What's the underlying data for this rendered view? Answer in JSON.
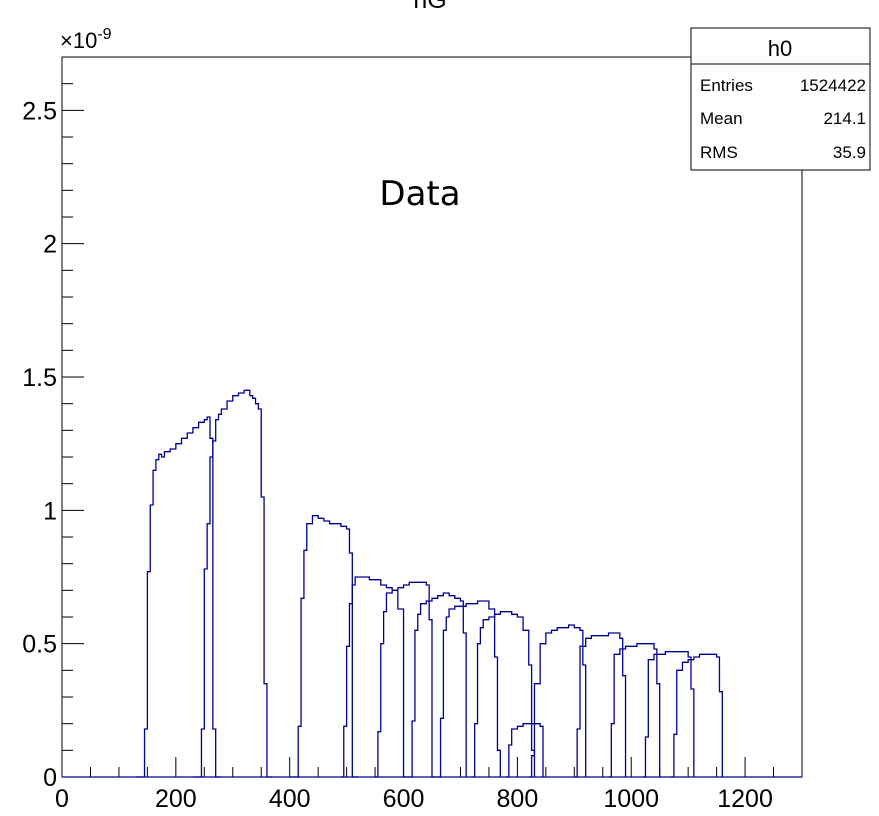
{
  "chart_data": {
    "type": "histogram",
    "title": "hG",
    "annotation": "Data",
    "y_multiplier": "×10",
    "y_multiplier_exp": "-9",
    "xlim": [
      0,
      1300
    ],
    "ylim": [
      0,
      2.7
    ],
    "x_ticks": [
      "0",
      "200",
      "400",
      "600",
      "800",
      "1000",
      "1200"
    ],
    "x_tick_values": [
      0,
      200,
      400,
      600,
      800,
      1000,
      1200
    ],
    "y_ticks": [
      "0",
      "0.5",
      "1",
      "1.5",
      "2",
      "2.5"
    ],
    "y_tick_values": [
      0,
      0.5,
      1,
      1.5,
      2,
      2.5
    ],
    "line_color": "#000099",
    "stats": {
      "name": "h0",
      "rows": [
        {
          "label": "Entries",
          "value": "1524422"
        },
        {
          "label": "Mean",
          "value": "214.1"
        },
        {
          "label": "RMS",
          "value": "35.9"
        }
      ]
    },
    "series": [
      {
        "x": [
          130,
          140,
          145,
          150,
          155,
          160,
          165,
          170,
          175,
          180,
          190,
          200,
          210,
          220,
          230,
          240,
          250,
          255,
          260,
          265,
          270,
          280
        ],
        "y": [
          0,
          0,
          0.18,
          0.77,
          1.02,
          1.15,
          1.19,
          1.21,
          1.2,
          1.22,
          1.23,
          1.25,
          1.27,
          1.29,
          1.31,
          1.33,
          1.34,
          1.35,
          1.27,
          0.18,
          0,
          0
        ]
      },
      {
        "x": [
          230,
          240,
          245,
          250,
          255,
          260,
          265,
          270,
          275,
          280,
          290,
          300,
          310,
          320,
          330,
          335,
          340,
          345,
          350,
          355,
          360,
          370
        ],
        "y": [
          0,
          0,
          0.18,
          0.78,
          0.95,
          1.2,
          1.26,
          1.34,
          1.36,
          1.38,
          1.41,
          1.43,
          1.44,
          1.45,
          1.43,
          1.42,
          1.4,
          1.38,
          1.05,
          0.35,
          0,
          0
        ]
      },
      {
        "x": [
          400,
          410,
          415,
          420,
          425,
          430,
          440,
          450,
          460,
          470,
          480,
          490,
          500,
          505,
          510,
          520
        ],
        "y": [
          0,
          0,
          0.19,
          0.67,
          0.85,
          0.95,
          0.98,
          0.97,
          0.96,
          0.95,
          0.95,
          0.94,
          0.93,
          0.84,
          0,
          0
        ]
      },
      {
        "x": [
          490,
          495,
          500,
          505,
          510,
          515,
          520,
          530,
          540,
          550,
          560,
          570,
          580,
          590,
          600,
          610
        ],
        "y": [
          0,
          0.19,
          0.49,
          0.65,
          0.72,
          0.75,
          0.75,
          0.75,
          0.74,
          0.74,
          0.72,
          0.71,
          0.7,
          0.63,
          0,
          0
        ]
      },
      {
        "x": [
          550,
          555,
          560,
          565,
          570,
          580,
          590,
          600,
          610,
          620,
          630,
          640,
          645,
          650,
          660
        ],
        "y": [
          0,
          0.17,
          0.5,
          0.62,
          0.69,
          0.7,
          0.71,
          0.72,
          0.73,
          0.73,
          0.73,
          0.72,
          0.59,
          0,
          0
        ]
      },
      {
        "x": [
          610,
          615,
          620,
          625,
          630,
          640,
          650,
          660,
          670,
          680,
          690,
          700,
          705,
          710
        ],
        "y": [
          0,
          0.21,
          0.55,
          0.61,
          0.65,
          0.66,
          0.67,
          0.68,
          0.69,
          0.68,
          0.67,
          0.66,
          0.54,
          0
        ]
      },
      {
        "x": [
          660,
          665,
          670,
          675,
          680,
          690,
          700,
          710,
          720,
          730,
          740,
          750,
          760,
          765,
          770
        ],
        "y": [
          0,
          0.22,
          0.55,
          0.6,
          0.63,
          0.64,
          0.64,
          0.65,
          0.65,
          0.66,
          0.66,
          0.63,
          0.45,
          0.1,
          0
        ]
      },
      {
        "x": [
          720,
          725,
          730,
          735,
          740,
          750,
          760,
          770,
          780,
          790,
          800,
          810,
          820,
          825,
          830
        ],
        "y": [
          0,
          0.2,
          0.5,
          0.56,
          0.59,
          0.6,
          0.61,
          0.62,
          0.62,
          0.61,
          0.6,
          0.55,
          0.42,
          0.1,
          0
        ]
      },
      {
        "x": [
          780,
          785,
          790,
          800,
          810,
          820,
          830,
          840,
          845
        ],
        "y": [
          0,
          0.12,
          0.18,
          0.19,
          0.2,
          0.2,
          0.2,
          0.19,
          0.0
        ]
      },
      {
        "x": [
          820,
          825,
          830,
          840,
          850,
          860,
          870,
          880,
          890,
          900,
          910,
          915,
          920
        ],
        "y": [
          0,
          0.08,
          0.35,
          0.5,
          0.54,
          0.55,
          0.56,
          0.56,
          0.57,
          0.56,
          0.55,
          0.42,
          0
        ]
      },
      {
        "x": [
          900,
          905,
          910,
          920,
          930,
          940,
          950,
          960,
          970,
          980,
          985,
          990
        ],
        "y": [
          0,
          0.18,
          0.49,
          0.52,
          0.53,
          0.53,
          0.53,
          0.54,
          0.54,
          0.52,
          0.38,
          0
        ]
      },
      {
        "x": [
          960,
          965,
          970,
          980,
          990,
          1000,
          1010,
          1020,
          1030,
          1040,
          1045,
          1050
        ],
        "y": [
          0,
          0.2,
          0.46,
          0.48,
          0.49,
          0.49,
          0.5,
          0.5,
          0.5,
          0.48,
          0.35,
          0
        ]
      },
      {
        "x": [
          1020,
          1025,
          1030,
          1040,
          1050,
          1060,
          1070,
          1080,
          1090,
          1100,
          1105,
          1110
        ],
        "y": [
          0,
          0.15,
          0.44,
          0.46,
          0.46,
          0.47,
          0.47,
          0.47,
          0.47,
          0.45,
          0.33,
          0
        ]
      },
      {
        "x": [
          1070,
          1075,
          1080,
          1090,
          1100,
          1110,
          1120,
          1130,
          1140,
          1150,
          1155,
          1160
        ],
        "y": [
          0,
          0.16,
          0.4,
          0.43,
          0.44,
          0.45,
          0.46,
          0.46,
          0.46,
          0.45,
          0.32,
          0
        ]
      }
    ]
  }
}
